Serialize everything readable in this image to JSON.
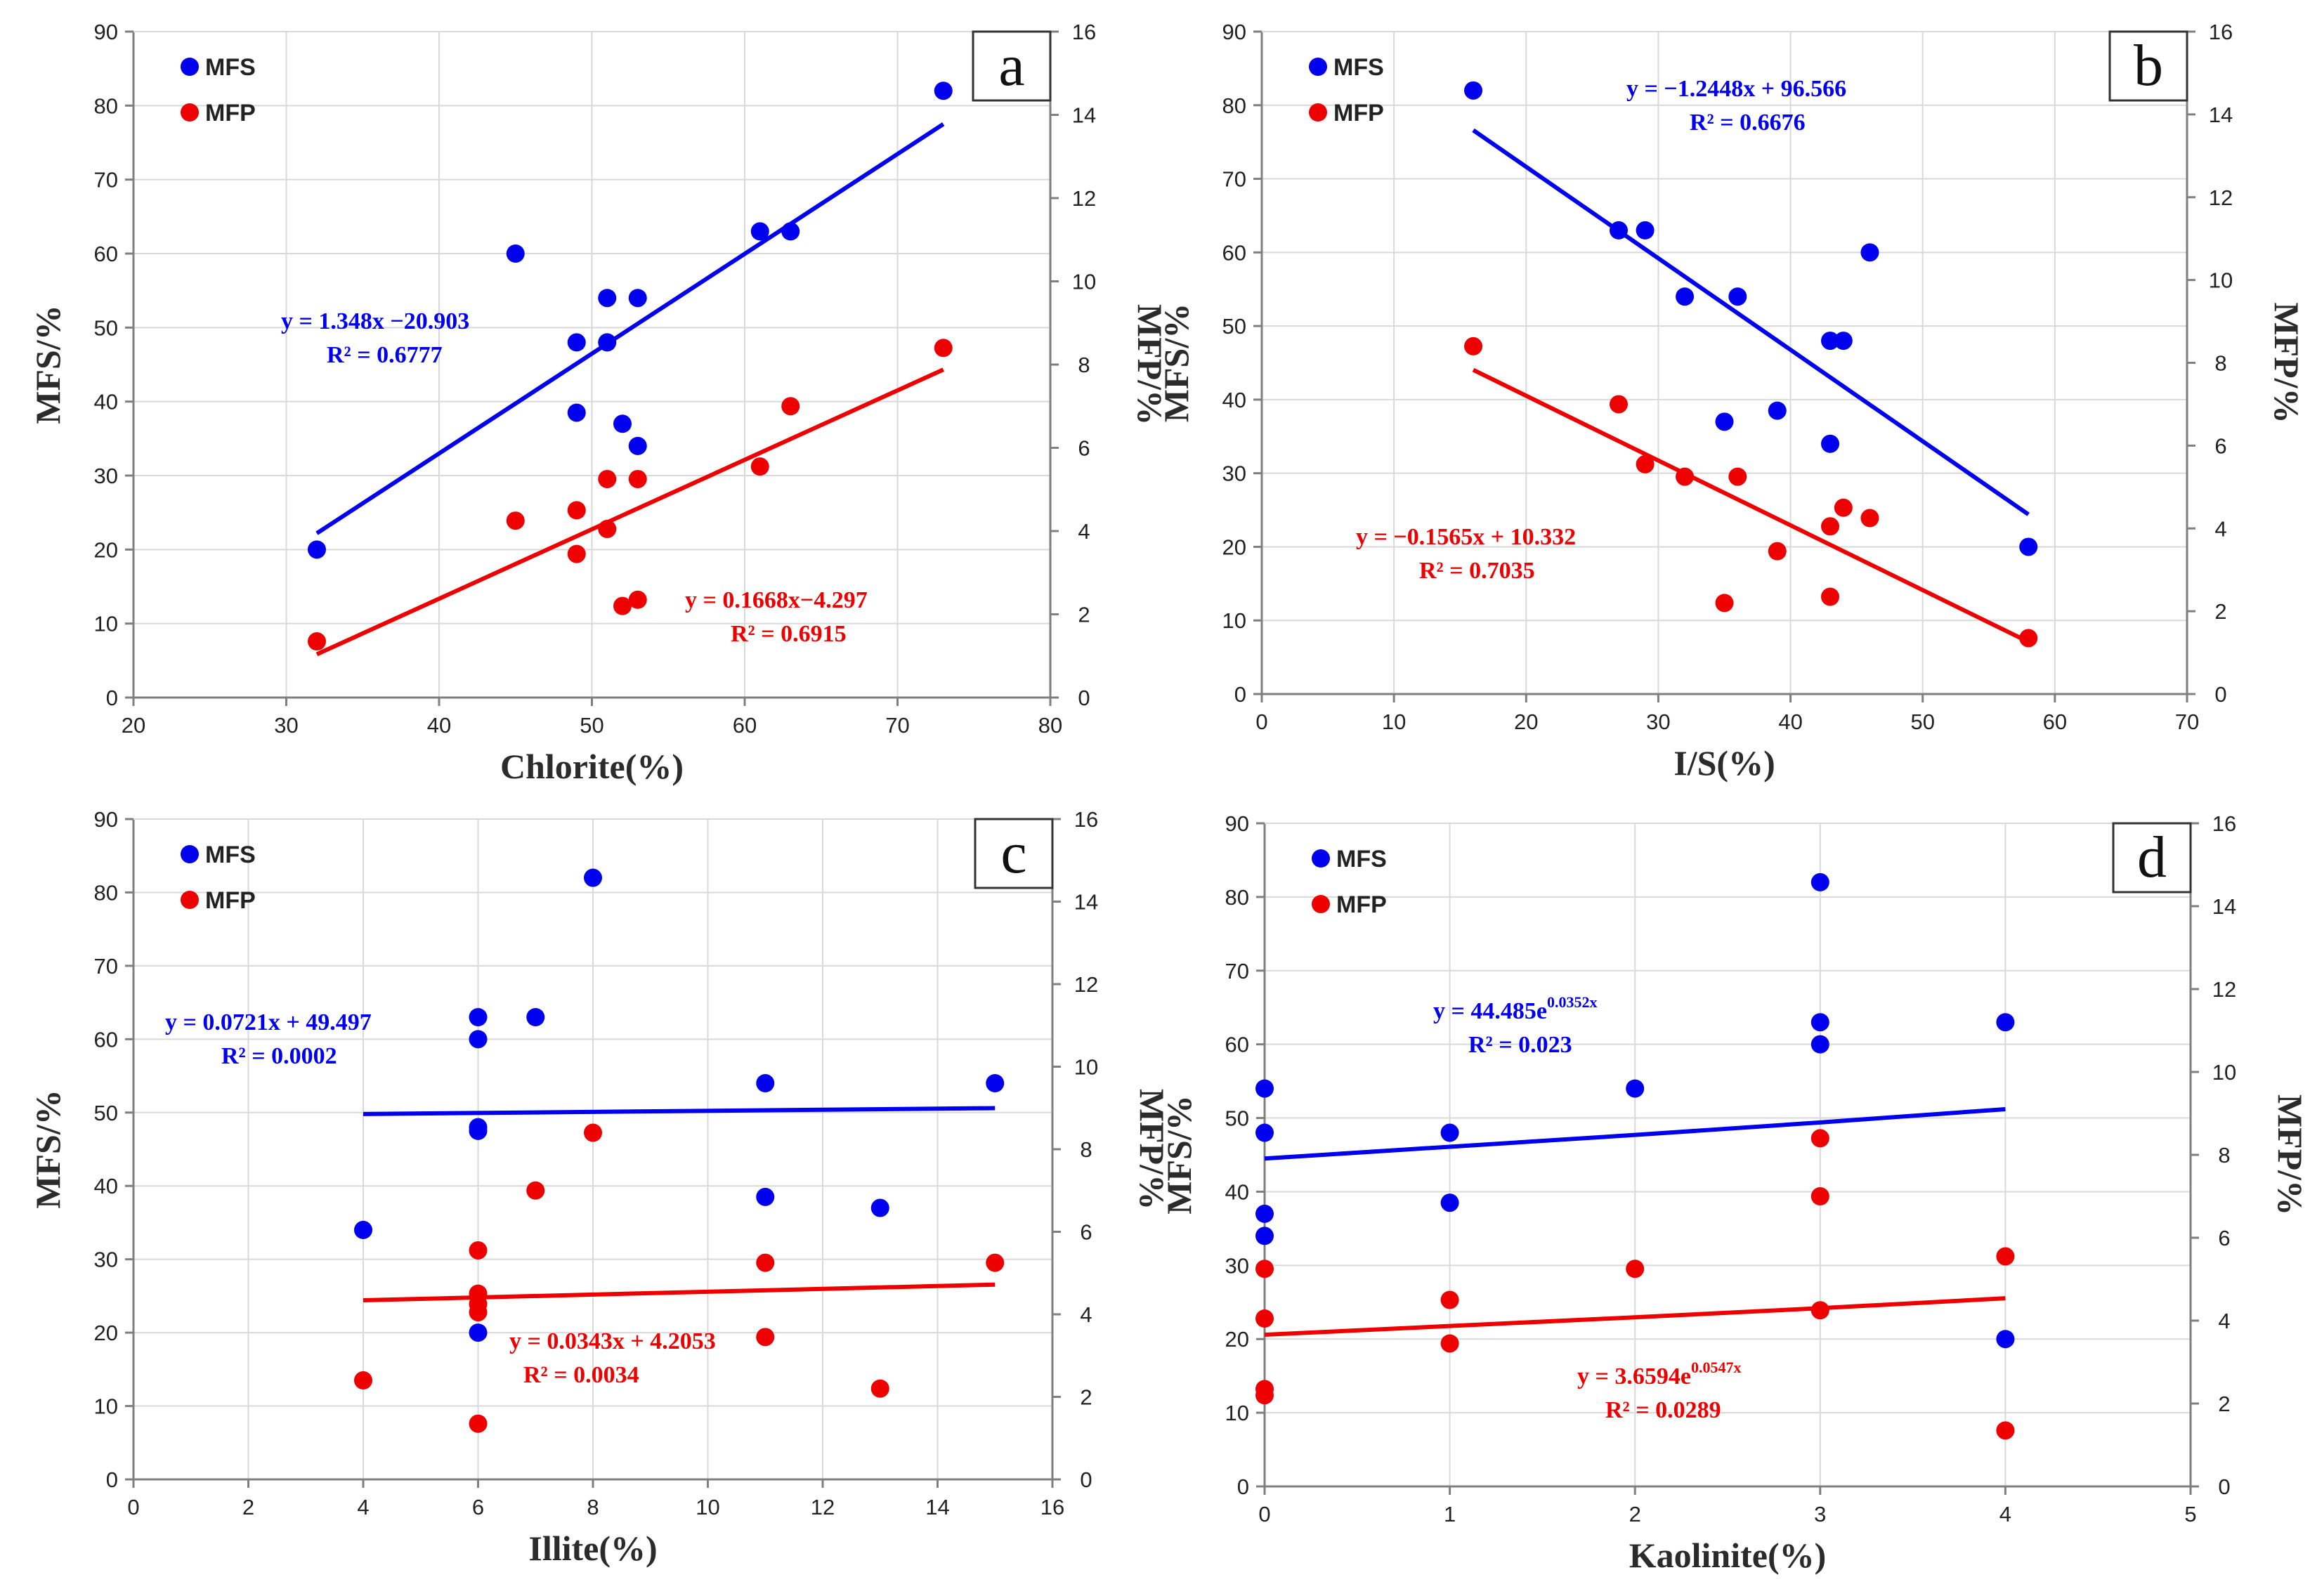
{
  "chart_data": [
    {
      "type": "scatter",
      "panel": "a",
      "xlabel": "Chlorite(%)",
      "ylabel": "MFS/%",
      "y2label": "MFP/%",
      "xlim": [
        20,
        80
      ],
      "xticks": [
        20,
        30,
        40,
        50,
        60,
        70,
        80
      ],
      "ylim": [
        0,
        90
      ],
      "yticks": [
        0,
        10,
        20,
        30,
        40,
        50,
        60,
        70,
        80,
        90
      ],
      "y2lim": [
        0,
        16
      ],
      "y2ticks": [
        0,
        2,
        4,
        6,
        8,
        10,
        12,
        14,
        16
      ],
      "legend": [
        "MFS",
        "MFP"
      ],
      "series": [
        {
          "name": "MFS",
          "color": "#0000ee",
          "axis": "left",
          "x": [
            32,
            45,
            49,
            49,
            51,
            51,
            52,
            53,
            53,
            61,
            63,
            73
          ],
          "y": [
            20,
            60,
            48,
            38.5,
            54,
            48,
            37,
            34,
            54,
            63,
            63,
            82
          ],
          "fit": {
            "x": [
              32,
              73
            ],
            "y": [
              22.2,
              77.5
            ]
          },
          "equation": [
            "y = 1.348x −20.903",
            "R² = 0.6777"
          ]
        },
        {
          "name": "MFP",
          "color": "#ee0000",
          "axis": "right",
          "x": [
            32,
            45,
            49,
            49,
            51,
            51,
            52,
            53,
            53,
            61,
            63,
            73
          ],
          "y": [
            1.35,
            4.25,
            4.5,
            3.45,
            4.05,
            5.25,
            2.2,
            5.25,
            2.35,
            5.55,
            7.0,
            8.4
          ],
          "fit": {
            "x": [
              32,
              73
            ],
            "y": [
              1.04,
              7.88
            ]
          },
          "equation": [
            "y = 0.1668x−4.297",
            "R² = 0.6915"
          ]
        }
      ]
    },
    {
      "type": "scatter",
      "panel": "b",
      "xlabel": "I/S(%)",
      "ylabel": "MFS/%",
      "y2label": "MFP/%",
      "xlim": [
        0,
        70
      ],
      "xticks": [
        0,
        10,
        20,
        30,
        40,
        50,
        60,
        70
      ],
      "ylim": [
        0,
        90
      ],
      "yticks": [
        0,
        10,
        20,
        30,
        40,
        50,
        60,
        70,
        80,
        90
      ],
      "y2lim": [
        0,
        16
      ],
      "y2ticks": [
        0,
        2,
        4,
        6,
        8,
        10,
        12,
        14,
        16
      ],
      "legend": [
        "MFS",
        "MFP"
      ],
      "series": [
        {
          "name": "MFS",
          "color": "#0000ee",
          "axis": "left",
          "x": [
            16,
            27,
            29,
            32,
            36,
            35,
            39,
            43,
            44,
            43,
            46,
            58
          ],
          "y": [
            82,
            63,
            63,
            54,
            54,
            37,
            38.5,
            48,
            48,
            34,
            60,
            20
          ],
          "fit": {
            "x": [
              16,
              58
            ],
            "y": [
              76.6,
              24.4
            ]
          },
          "equation": [
            "y = −1.2448x + 96.566",
            "R² = 0.6676"
          ]
        },
        {
          "name": "MFP",
          "color": "#ee0000",
          "axis": "right",
          "x": [
            16,
            27,
            29,
            32,
            36,
            35,
            39,
            43,
            44,
            43,
            46,
            58
          ],
          "y": [
            8.4,
            7.0,
            5.55,
            5.25,
            5.25,
            2.2,
            3.45,
            4.05,
            4.5,
            2.35,
            4.25,
            1.35
          ],
          "fit": {
            "x": [
              16,
              58
            ],
            "y": [
              7.83,
              1.26
            ]
          },
          "equation": [
            "y = −0.1565x + 10.332",
            "R² = 0.7035"
          ]
        }
      ]
    },
    {
      "type": "scatter",
      "panel": "c",
      "xlabel": "Illite(%)",
      "ylabel": "MFS/%",
      "y2label": "MFP/%",
      "xlim": [
        0,
        16
      ],
      "xticks": [
        0,
        2,
        4,
        6,
        8,
        10,
        12,
        14,
        16
      ],
      "ylim": [
        0,
        90
      ],
      "yticks": [
        0,
        10,
        20,
        30,
        40,
        50,
        60,
        70,
        80,
        90
      ],
      "y2lim": [
        0,
        16
      ],
      "y2ticks": [
        0,
        2,
        4,
        6,
        8,
        10,
        12,
        14,
        16
      ],
      "legend": [
        "MFS",
        "MFP"
      ],
      "series": [
        {
          "name": "MFS",
          "color": "#0000ee",
          "axis": "left",
          "x": [
            4,
            6,
            6,
            6,
            6,
            6,
            7,
            8,
            11,
            11,
            13,
            15
          ],
          "y": [
            34,
            63,
            60,
            48,
            47.5,
            20,
            63,
            82,
            54,
            38.5,
            37,
            54
          ],
          "fit": {
            "x": [
              4,
              15
            ],
            "y": [
              49.8,
              50.6
            ]
          },
          "equation": [
            "y = 0.0721x + 49.497",
            "R² = 0.0002"
          ]
        },
        {
          "name": "MFP",
          "color": "#ee0000",
          "axis": "right",
          "x": [
            4,
            6,
            6,
            6,
            6,
            6,
            7,
            8,
            11,
            11,
            13,
            15
          ],
          "y": [
            2.4,
            5.55,
            4.5,
            4.25,
            4.05,
            1.35,
            7.0,
            8.4,
            5.25,
            3.45,
            2.2,
            5.25
          ],
          "fit": {
            "x": [
              4,
              15
            ],
            "y": [
              4.34,
              4.72
            ]
          },
          "equation": [
            "y = 0.0343x + 4.2053",
            "R² = 0.0034"
          ]
        }
      ]
    },
    {
      "type": "scatter",
      "panel": "d",
      "xlabel": "Kaolinite(%)",
      "ylabel": "MFS/%",
      "y2label": "MFP/%",
      "xlim": [
        0,
        5
      ],
      "xticks": [
        0,
        1,
        2,
        3,
        4,
        5
      ],
      "ylim": [
        0,
        90
      ],
      "yticks": [
        0,
        10,
        20,
        30,
        40,
        50,
        60,
        70,
        80,
        90
      ],
      "y2lim": [
        0,
        16
      ],
      "y2ticks": [
        0,
        2,
        4,
        6,
        8,
        10,
        12,
        14,
        16
      ],
      "legend": [
        "MFS",
        "MFP"
      ],
      "series": [
        {
          "name": "MFS",
          "color": "#0000ee",
          "axis": "left",
          "x": [
            0,
            0,
            0,
            0,
            1,
            1,
            2,
            3,
            3,
            3,
            4,
            4
          ],
          "y": [
            54,
            48,
            37,
            34,
            48,
            38.5,
            54,
            82,
            63,
            60,
            63,
            20
          ],
          "fit": {
            "x": [
              0,
              1,
              2,
              3,
              4
            ],
            "y": [
              44.5,
              46.1,
              47.7,
              49.4,
              51.2
            ]
          },
          "equation": [
            "y = 44.485e",
            "0.0352x",
            "R² = 0.023"
          ]
        },
        {
          "name": "MFP",
          "color": "#ee0000",
          "axis": "right",
          "x": [
            0,
            0,
            0,
            0,
            1,
            1,
            2,
            3,
            3,
            3,
            4,
            4
          ],
          "y": [
            5.25,
            4.05,
            2.35,
            2.2,
            4.5,
            3.45,
            5.25,
            8.4,
            7.0,
            4.25,
            5.55,
            1.35
          ],
          "fit": {
            "x": [
              0,
              1,
              2,
              3,
              4
            ],
            "y": [
              3.66,
              3.87,
              4.08,
              4.3,
              4.54
            ]
          },
          "equation": [
            "y = 3.6594e",
            "0.0547x",
            "R² = 0.0289"
          ]
        }
      ]
    }
  ]
}
